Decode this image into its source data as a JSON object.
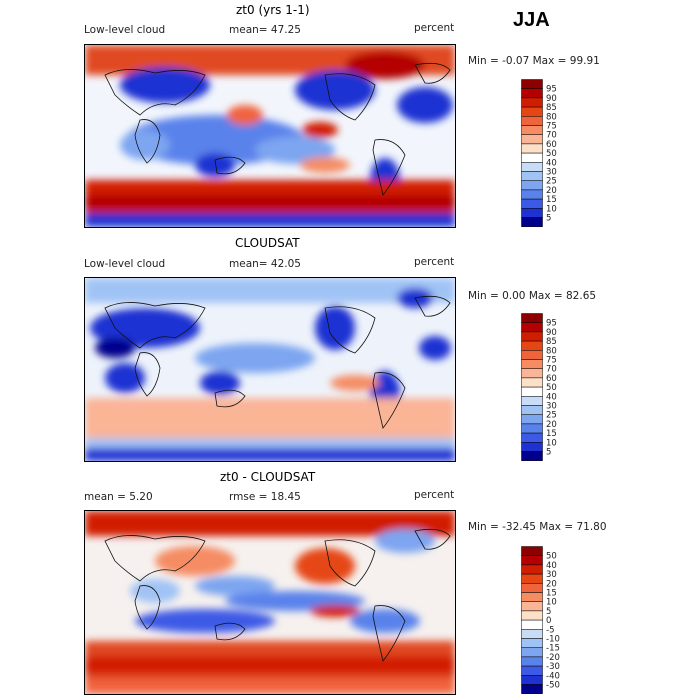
{
  "season": "JJA",
  "panels": [
    {
      "title": "zt0 (yrs 1-1)",
      "left_label": "Low-level cloud",
      "mid_label": "mean=  47.25",
      "units": "percent",
      "min_max": "Min =   -0.07  Max =   99.91",
      "colorbar": {
        "labels": [
          "95",
          "90",
          "85",
          "80",
          "75",
          "70",
          "60",
          "50",
          "40",
          "30",
          "25",
          "20",
          "15",
          "10",
          "5"
        ],
        "colors": [
          "#8c0000",
          "#b40000",
          "#d21e00",
          "#e64614",
          "#f0643c",
          "#f58c64",
          "#fab496",
          "#fde0c8",
          "#ffffff",
          "#c8dcf5",
          "#a0c3f5",
          "#7da5f0",
          "#5a82eb",
          "#3c5ae6",
          "#1e32d2",
          "#00008c"
        ]
      }
    },
    {
      "title": "CLOUDSAT",
      "left_label": "Low-level cloud",
      "mid_label": "mean=  42.05",
      "units": "percent",
      "min_max": "Min =    0.00  Max =   82.65",
      "colorbar": {
        "labels": [
          "95",
          "90",
          "85",
          "80",
          "75",
          "70",
          "60",
          "50",
          "40",
          "30",
          "25",
          "20",
          "15",
          "10",
          "5"
        ],
        "colors": [
          "#8c0000",
          "#b40000",
          "#d21e00",
          "#e64614",
          "#f0643c",
          "#f58c64",
          "#fab496",
          "#fde0c8",
          "#ffffff",
          "#c8dcf5",
          "#a0c3f5",
          "#7da5f0",
          "#5a82eb",
          "#3c5ae6",
          "#1e32d2",
          "#00008c"
        ]
      }
    },
    {
      "title": "zt0 - CLOUDSAT",
      "left_label": "mean =    5.20",
      "mid_label": "rmse =   18.45",
      "units": "percent",
      "min_max": "Min =  -32.45  Max =   71.80",
      "colorbar": {
        "labels": [
          "50",
          "40",
          "30",
          "20",
          "15",
          "10",
          "5",
          "0",
          "-5",
          "-10",
          "-15",
          "-20",
          "-30",
          "-40",
          "-50"
        ],
        "colors": [
          "#8c0000",
          "#b40000",
          "#d21e00",
          "#e64614",
          "#f0643c",
          "#f58c64",
          "#fab496",
          "#fde0c8",
          "#ffffff",
          "#c8dcf5",
          "#a0c3f5",
          "#7da5f0",
          "#5a82eb",
          "#3c5ae6",
          "#1e32d2",
          "#00008c"
        ]
      }
    }
  ]
}
